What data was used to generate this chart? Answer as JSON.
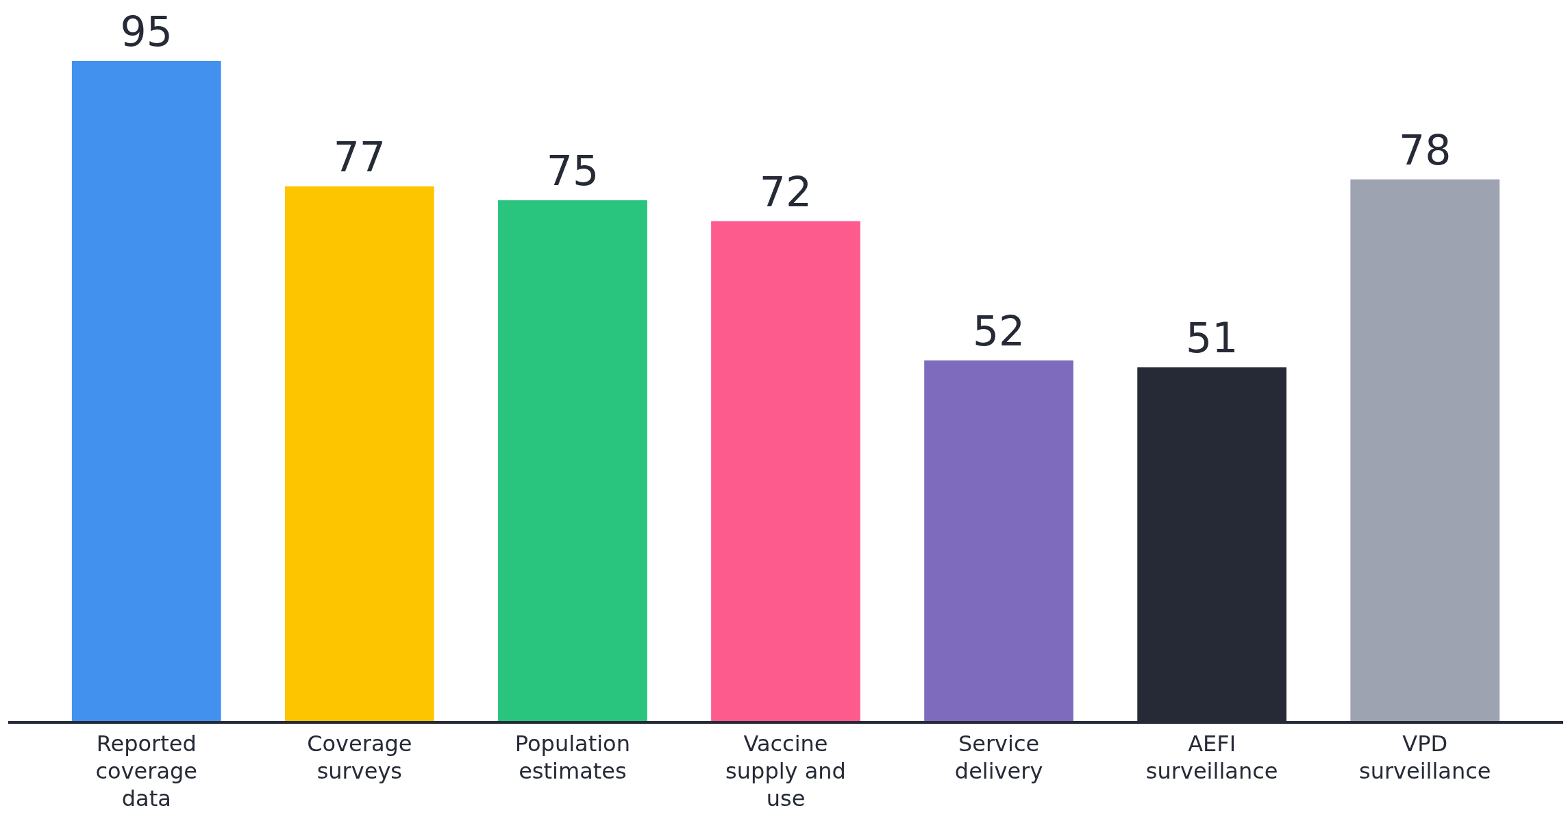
{
  "chart_data": {
    "type": "bar",
    "categories": [
      "Reported coverage data",
      "Coverage surveys",
      "Population estimates",
      "Vaccine supply and use",
      "Service delivery",
      "AEFI surveillance",
      "VPD surveillance"
    ],
    "values": [
      95,
      77,
      75,
      72,
      52,
      51,
      78
    ],
    "colors": [
      "#4391ee",
      "#fdc500",
      "#29c47e",
      "#fd5b8e",
      "#7f6bbe",
      "#252a36",
      "#9da3b0"
    ],
    "data_labels": true
  }
}
